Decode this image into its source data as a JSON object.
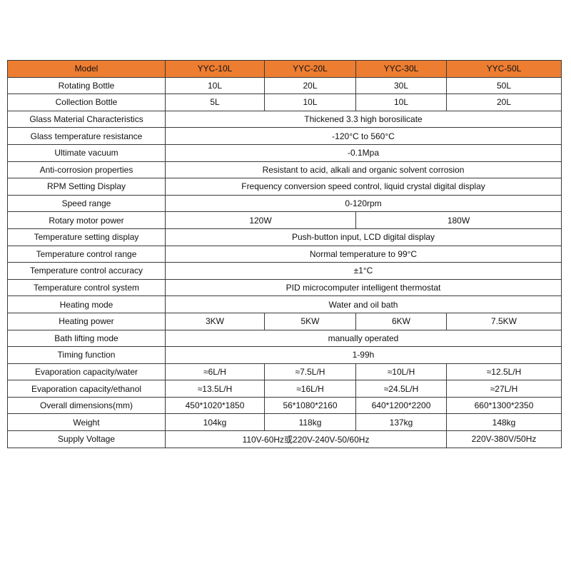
{
  "colors": {
    "header_bg": "#ED7D31",
    "border": "#3a3a3a"
  },
  "header": {
    "label": "Model",
    "models": [
      "YYC-10L",
      "YYC-20L",
      "YYC-30L",
      "YYC-50L"
    ]
  },
  "rows": [
    {
      "label": "Rotating Bottle",
      "cells": [
        {
          "text": "10L",
          "span": 1
        },
        {
          "text": "20L",
          "span": 1
        },
        {
          "text": "30L",
          "span": 1
        },
        {
          "text": "50L",
          "span": 1
        }
      ]
    },
    {
      "label": "Collection Bottle",
      "cells": [
        {
          "text": "5L",
          "span": 1
        },
        {
          "text": "10L",
          "span": 1
        },
        {
          "text": "10L",
          "span": 1
        },
        {
          "text": "20L",
          "span": 1
        }
      ]
    },
    {
      "label": "Glass Material Characteristics",
      "cells": [
        {
          "text": "Thickened 3.3 high borosilicate",
          "span": 4
        }
      ]
    },
    {
      "label": "Glass temperature resistance",
      "cells": [
        {
          "text": "-120°C to 560°C",
          "span": 4
        }
      ]
    },
    {
      "label": "Ultimate vacuum",
      "cells": [
        {
          "text": "-0.1Mpa",
          "span": 4
        }
      ]
    },
    {
      "label": "Anti-corrosion properties",
      "cells": [
        {
          "text": "Resistant to acid, alkali and organic solvent corrosion",
          "span": 4
        }
      ]
    },
    {
      "label": "RPM Setting Display",
      "cells": [
        {
          "text": "Frequency conversion speed control, liquid crystal digital display",
          "span": 4
        }
      ]
    },
    {
      "label": "Speed range",
      "cells": [
        {
          "text": "0-120rpm",
          "span": 4
        }
      ]
    },
    {
      "label": "Rotary motor power",
      "cells": [
        {
          "text": "120W",
          "span": 2
        },
        {
          "text": "180W",
          "span": 2
        }
      ]
    },
    {
      "label": "Temperature setting display",
      "cells": [
        {
          "text": "Push-button input, LCD digital display",
          "span": 4
        }
      ]
    },
    {
      "label": "Temperature control range",
      "cells": [
        {
          "text": "Normal temperature to 99°C",
          "span": 4
        }
      ]
    },
    {
      "label": "Temperature control accuracy",
      "cells": [
        {
          "text": "±1°C",
          "span": 4
        }
      ]
    },
    {
      "label": "Temperature control system",
      "cells": [
        {
          "text": "PID microcomputer intelligent thermostat",
          "span": 4
        }
      ]
    },
    {
      "label": "Heating mode",
      "cells": [
        {
          "text": "Water and oil bath",
          "span": 4
        }
      ]
    },
    {
      "label": "Heating power",
      "cells": [
        {
          "text": "3KW",
          "span": 1
        },
        {
          "text": "5KW",
          "span": 1
        },
        {
          "text": "6KW",
          "span": 1
        },
        {
          "text": "7.5KW",
          "span": 1
        }
      ]
    },
    {
      "label": "Bath lifting mode",
      "cells": [
        {
          "text": "manually operated",
          "span": 4
        }
      ]
    },
    {
      "label": "Timing function",
      "cells": [
        {
          "text": "1-99h",
          "span": 4
        }
      ]
    },
    {
      "label": "Evaporation capacity/water",
      "cells": [
        {
          "text": "≈6L/H",
          "span": 1
        },
        {
          "text": "≈7.5L/H",
          "span": 1
        },
        {
          "text": "≈10L/H",
          "span": 1
        },
        {
          "text": "≈12.5L/H",
          "span": 1
        }
      ]
    },
    {
      "label": "Evaporation capacity/ethanol",
      "cells": [
        {
          "text": "≈13.5L/H",
          "span": 1
        },
        {
          "text": "≈16L/H",
          "span": 1
        },
        {
          "text": "≈24.5L/H",
          "span": 1
        },
        {
          "text": "≈27L/H",
          "span": 1
        }
      ]
    },
    {
      "label": "Overall dimensions(mm)",
      "cells": [
        {
          "text": "450*1020*1850",
          "span": 1
        },
        {
          "text": "56*1080*2160",
          "span": 1
        },
        {
          "text": "640*1200*2200",
          "span": 1
        },
        {
          "text": "660*1300*2350",
          "span": 1
        }
      ]
    },
    {
      "label": "Weight",
      "cells": [
        {
          "text": "104kg",
          "span": 1
        },
        {
          "text": "118kg",
          "span": 1
        },
        {
          "text": "137kg",
          "span": 1
        },
        {
          "text": "148kg",
          "span": 1
        }
      ]
    },
    {
      "label": "Supply Voltage",
      "cells": [
        {
          "text": "110V-60Hz或220V-240V-50/60Hz",
          "span": 3
        },
        {
          "text": "220V-380V/50Hz",
          "span": 1
        }
      ]
    }
  ]
}
